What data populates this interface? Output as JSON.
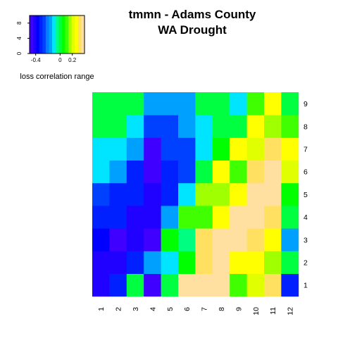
{
  "chart_data": {
    "type": "heatmap",
    "title_lines": [
      "tmmn - Adams County",
      "WA Drought"
    ],
    "x_categories": [
      "1",
      "2",
      "3",
      "4",
      "5",
      "6",
      "7",
      "8",
      "9",
      "10",
      "11",
      "12"
    ],
    "y_categories": [
      "1",
      "2",
      "3",
      "4",
      "5",
      "6",
      "7",
      "8",
      "9"
    ],
    "value_range": [
      -0.5,
      0.4
    ],
    "values": [
      [
        -0.4,
        -0.3,
        0.0,
        -0.45,
        0.0,
        0.35,
        0.38,
        0.35,
        0.1,
        0.2,
        0.3,
        -0.3
      ],
      [
        -0.4,
        -0.4,
        -0.3,
        -0.15,
        -0.1,
        0.05,
        0.34,
        0.38,
        0.28,
        0.25,
        0.15,
        0.0
      ],
      [
        -0.35,
        -0.45,
        -0.4,
        -0.45,
        0.05,
        -0.05,
        0.3,
        0.35,
        0.35,
        0.3,
        0.25,
        -0.15
      ],
      [
        -0.3,
        -0.3,
        -0.4,
        -0.4,
        -0.15,
        0.1,
        0.1,
        0.25,
        0.35,
        0.35,
        0.3,
        -0.02
      ],
      [
        -0.25,
        -0.3,
        -0.3,
        -0.4,
        -0.3,
        -0.1,
        0.15,
        0.15,
        0.25,
        0.35,
        0.35,
        0.05
      ],
      [
        -0.1,
        -0.15,
        -0.3,
        -0.45,
        -0.3,
        -0.25,
        0.0,
        0.25,
        0.1,
        0.3,
        0.38,
        0.2
      ],
      [
        -0.1,
        -0.1,
        -0.15,
        -0.45,
        -0.25,
        -0.25,
        -0.1,
        0.08,
        0.25,
        0.2,
        0.3,
        0.25
      ],
      [
        0.0,
        -0.02,
        -0.1,
        -0.25,
        -0.25,
        -0.15,
        -0.1,
        0.0,
        -0.02,
        0.25,
        0.15,
        0.1
      ],
      [
        -0.02,
        0.0,
        -0.02,
        -0.15,
        -0.15,
        -0.15,
        -0.02,
        -0.02,
        -0.1,
        0.1,
        0.25,
        0.0
      ]
    ],
    "colormap": [
      "#4000ff",
      "#2000ff",
      "#0000ff",
      "#0020ff",
      "#0040ff",
      "#0080ff",
      "#00a0ff",
      "#00e5ff",
      "#00ff80",
      "#00ff40",
      "#00ff00",
      "#40ff00",
      "#a0ff00",
      "#e0ff00",
      "#ffff00",
      "#ffe060",
      "#ffe0a0"
    ],
    "legend": {
      "label": "loss correlation range",
      "x_tick_labels": [
        "-0.4",
        "0",
        "0.2"
      ],
      "x_tick_values": [
        -0.4,
        0,
        0.2
      ],
      "y_tick_labels": [
        "0",
        "4",
        "8"
      ],
      "y_tick_values": [
        0,
        4,
        8
      ],
      "y_range": [
        0,
        10
      ],
      "placement": "top-left"
    }
  }
}
